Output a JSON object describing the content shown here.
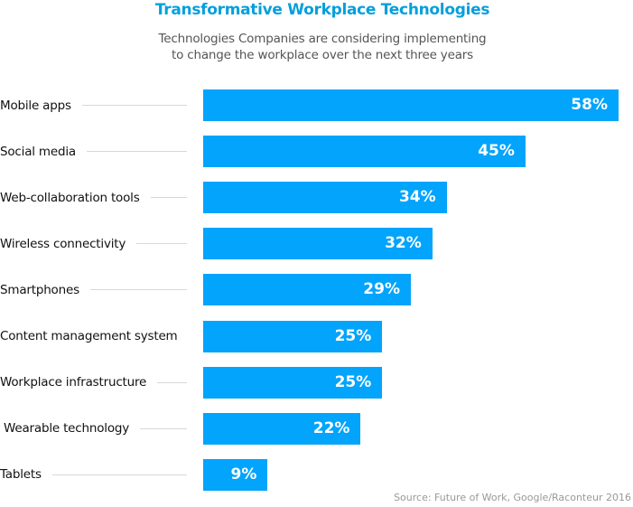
{
  "chart_data": {
    "type": "bar",
    "orientation": "horizontal",
    "title": "Transformative Workplace Technologies",
    "subtitle": "Technologies Companies are considering implementing to change the workplace over the next three years",
    "categories": [
      "Mobile apps",
      "Social media",
      "Web-collaboration tools",
      "Wireless connectivity",
      "Smartphones",
      "Content management system",
      "Workplace infrastructure",
      "Wearable technology",
      "Tablets"
    ],
    "values": [
      58,
      45,
      34,
      32,
      29,
      25,
      25,
      22,
      9
    ],
    "value_labels": [
      "58%",
      "45%",
      "34%",
      "32%",
      "29%",
      "25%",
      "25%",
      "22%",
      "9%"
    ],
    "unit": "%",
    "xlim": [
      0,
      58
    ],
    "grid": false,
    "bar_color": "#03a4fc",
    "title_color": "#049fdc",
    "source": "Source: Future of Work, Google/Raconteur 2016"
  }
}
